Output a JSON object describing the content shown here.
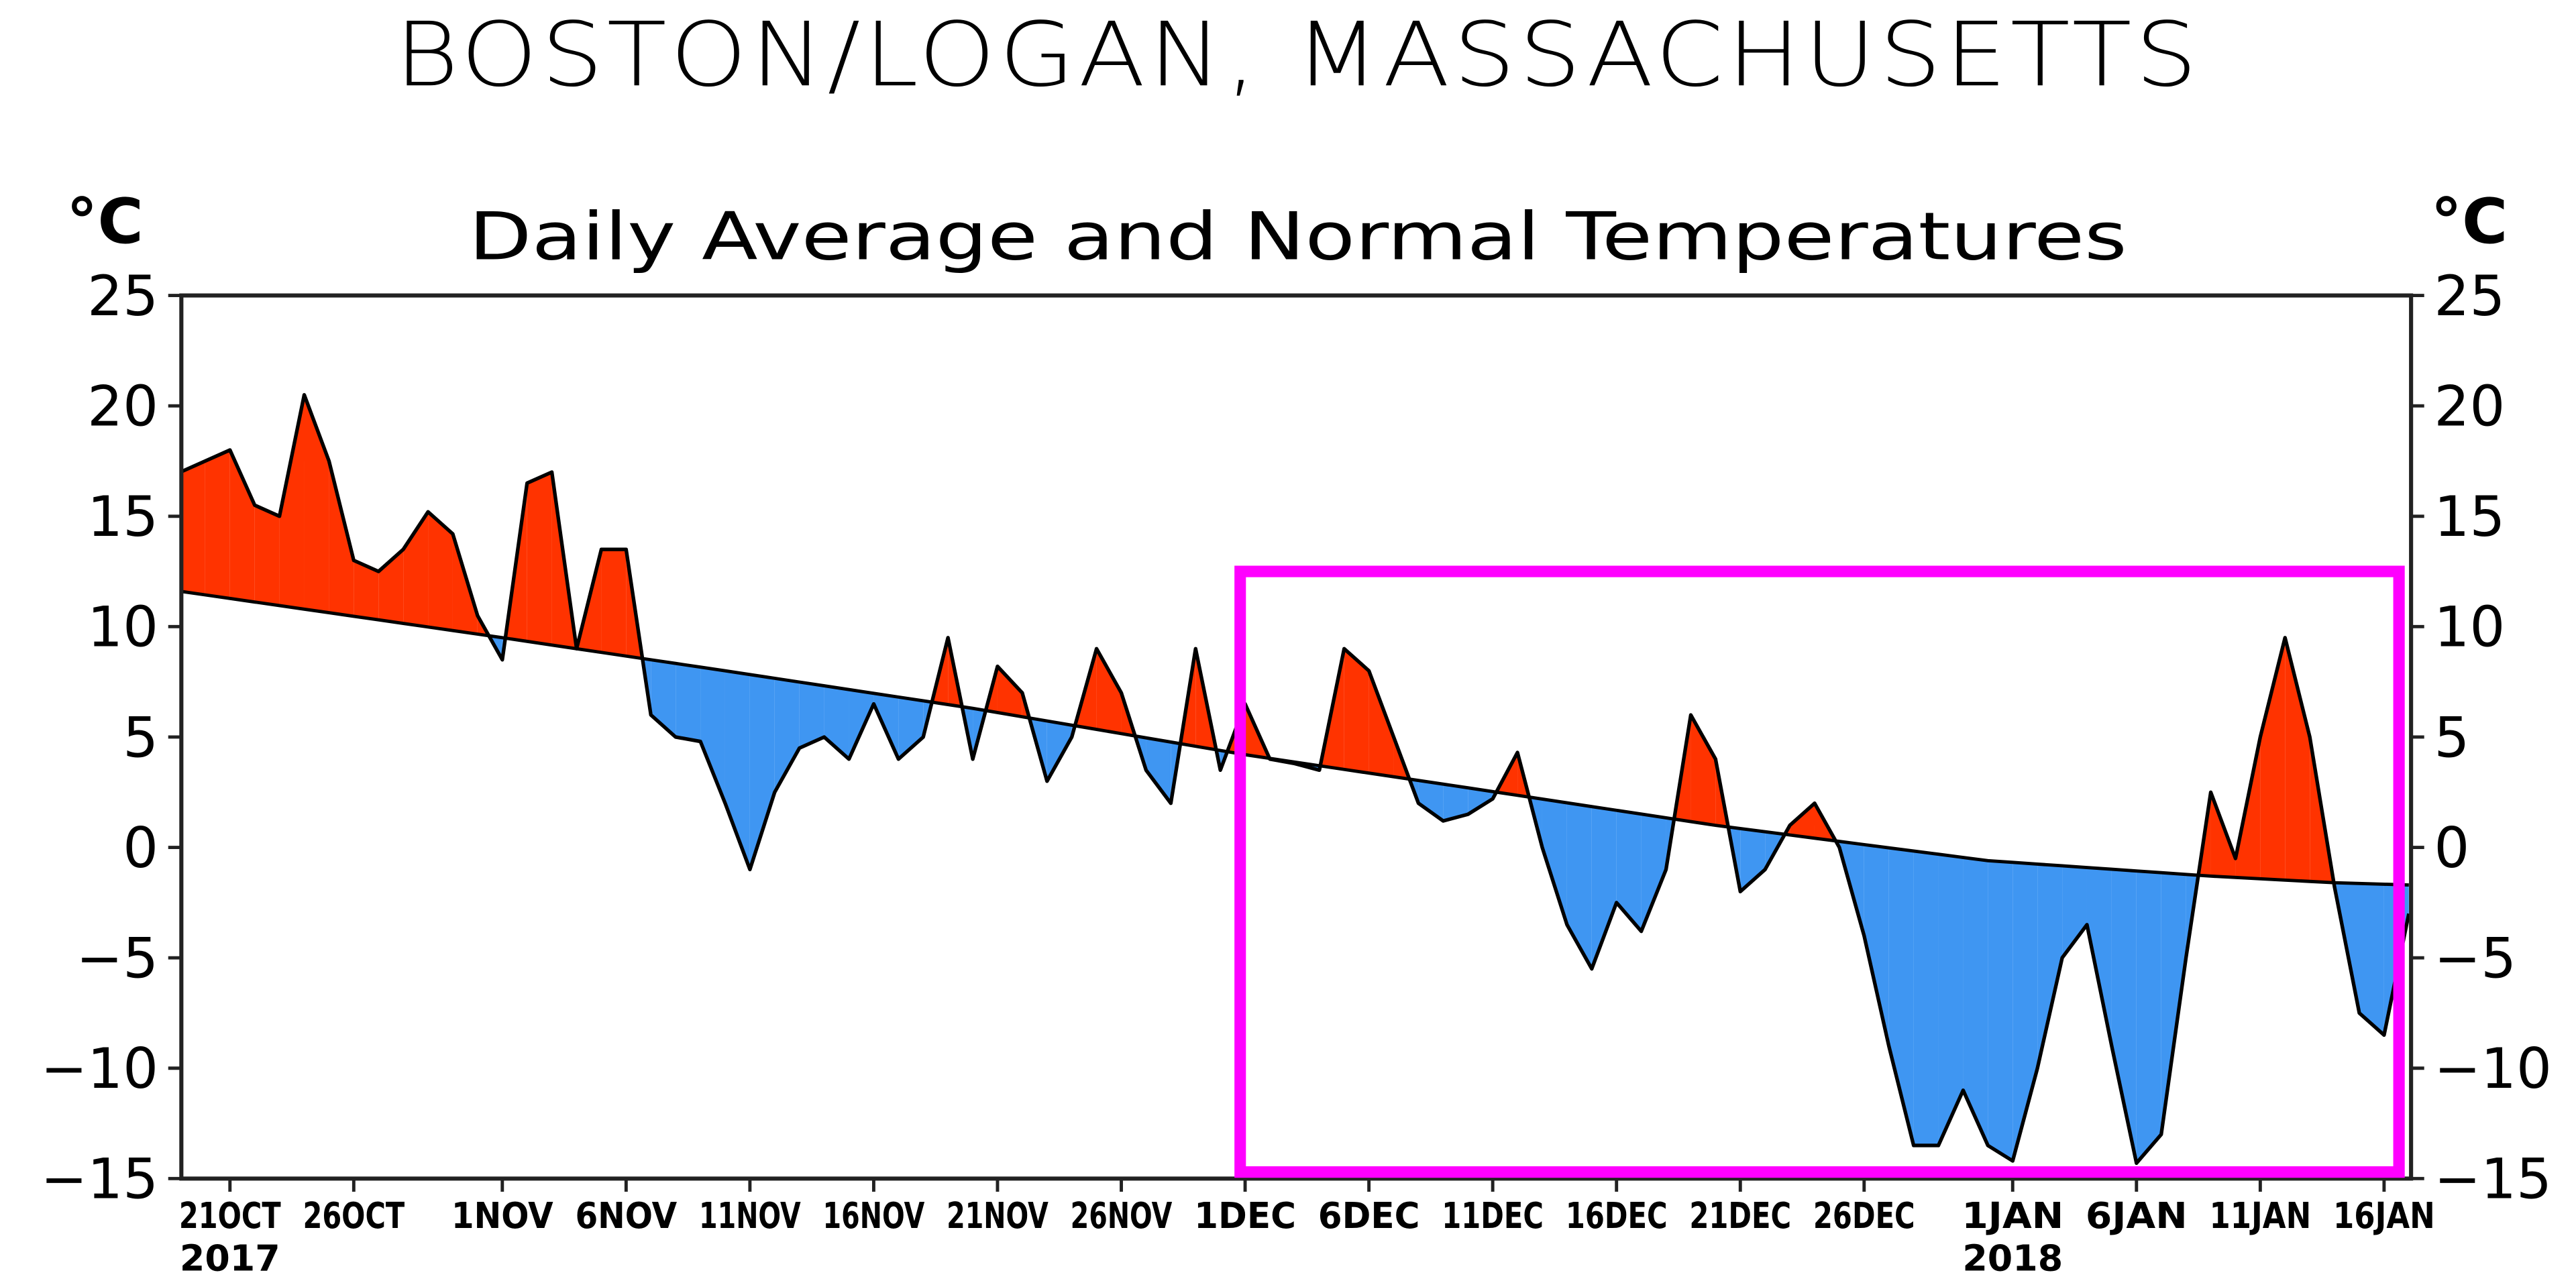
{
  "chart_data": {
    "type": "area",
    "title": "BOSTON/LOGAN, MASSACHUSETTS",
    "subtitle": "Daily Average and Normal Temperatures",
    "ylabel_left": "°C",
    "ylabel_right": "°C",
    "ylim": [
      -15,
      25
    ],
    "yticks": [
      25,
      20,
      15,
      10,
      5,
      0,
      -5,
      -10,
      -15
    ],
    "ytick_labels": [
      "25",
      "20",
      "15",
      "10",
      "5",
      "0",
      "−5",
      "−10",
      "−15"
    ],
    "xlim_days": [
      -2,
      88.2
    ],
    "x_origin_date": "21 OCT 2017",
    "xticks": [
      {
        "day": 0,
        "label": "21OCT"
      },
      {
        "day": 5,
        "label": "26OCT"
      },
      {
        "day": 11,
        "label": "1NOV"
      },
      {
        "day": 16,
        "label": "6NOV"
      },
      {
        "day": 21,
        "label": "11NOV"
      },
      {
        "day": 26,
        "label": "16NOV"
      },
      {
        "day": 31,
        "label": "21NOV"
      },
      {
        "day": 36,
        "label": "26NOV"
      },
      {
        "day": 41,
        "label": "1DEC"
      },
      {
        "day": 46,
        "label": "6DEC"
      },
      {
        "day": 51,
        "label": "11DEC"
      },
      {
        "day": 56,
        "label": "16DEC"
      },
      {
        "day": 61,
        "label": "21DEC"
      },
      {
        "day": 66,
        "label": "26DEC"
      },
      {
        "day": 72,
        "label": "1JAN"
      },
      {
        "day": 77,
        "label": "6JAN"
      },
      {
        "day": 82,
        "label": "11JAN"
      },
      {
        "day": 87,
        "label": "16JAN"
      }
    ],
    "year_labels": [
      {
        "day": 0,
        "label": "2017"
      },
      {
        "day": 72,
        "label": "2018"
      }
    ],
    "grid": false,
    "legend": "none",
    "series": [
      {
        "name": "Daily Average",
        "days": [
          -2,
          -1,
          0,
          1,
          2,
          3,
          4,
          5,
          6,
          7,
          8,
          9,
          10,
          11,
          12,
          13,
          14,
          15,
          16,
          17,
          18,
          19,
          20,
          21,
          22,
          23,
          24,
          25,
          26,
          27,
          28,
          29,
          30,
          31,
          32,
          33,
          34,
          35,
          36,
          37,
          38,
          39,
          40,
          41,
          42,
          43,
          44,
          45,
          46,
          47,
          48,
          49,
          50,
          51,
          52,
          53,
          54,
          55,
          56,
          57,
          58,
          59,
          60,
          61,
          62,
          63,
          64,
          65,
          66,
          67,
          68,
          69,
          70,
          71,
          72,
          73,
          74,
          75,
          76,
          77,
          78,
          79,
          80,
          81,
          82,
          83,
          84,
          85,
          86,
          87,
          88
        ],
        "values": [
          17,
          17.5,
          18,
          15.5,
          15,
          20.5,
          17.5,
          13,
          12.5,
          13.5,
          15.2,
          14.2,
          10.5,
          8.5,
          16.5,
          17,
          9,
          13.5,
          13.5,
          6,
          5,
          4.8,
          2,
          -1,
          2.5,
          4.5,
          5,
          4,
          6.5,
          4,
          5,
          9.5,
          4,
          8.2,
          7,
          3,
          5,
          9,
          7,
          3.5,
          2,
          9,
          3.5,
          6.5,
          4,
          3.8,
          3.5,
          9,
          8,
          5,
          2,
          1.2,
          1.5,
          2.2,
          4.3,
          0,
          -3.5,
          -5.5,
          -2.5,
          -3.8,
          -1,
          6,
          4,
          -2,
          -1,
          1,
          2,
          0,
          -4,
          -9,
          -13.5,
          -13.5,
          -11,
          -13.5,
          -14.2,
          -10,
          -5,
          -3.5,
          -9,
          -14.3,
          -13,
          -5,
          2.5,
          -0.5,
          5,
          9.5,
          5,
          -1.8,
          -7.5,
          -8.5,
          -3
        ]
      },
      {
        "name": "Normal",
        "days": [
          -2,
          11,
          20,
          30,
          41,
          50,
          60,
          71,
          80,
          85,
          88
        ],
        "values": [
          11.6,
          9.5,
          8,
          6.3,
          4.2,
          2.7,
          1.0,
          -0.6,
          -1.3,
          -1.6,
          -1.7
        ]
      }
    ],
    "fill_colors": {
      "above_normal": "#ff3300",
      "below_normal": "#3f96f2"
    },
    "annotations": [
      {
        "type": "highlight-box",
        "color": "#ff00ff",
        "from_day": 41,
        "to_day": 88,
        "y_from": -15,
        "y_to": 12.5
      }
    ]
  }
}
